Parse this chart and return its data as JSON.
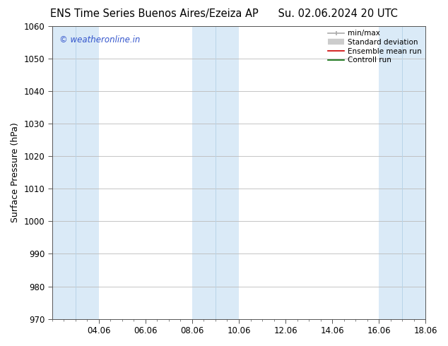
{
  "title_left": "ENS Time Series Buenos Aires/Ezeiza AP",
  "title_right": "Su. 02.06.2024 20 UTC",
  "ylabel": "Surface Pressure (hPa)",
  "ylim": [
    970,
    1060
  ],
  "yticks": [
    970,
    980,
    990,
    1000,
    1010,
    1020,
    1030,
    1040,
    1050,
    1060
  ],
  "xtick_labels": [
    "04.06",
    "06.06",
    "08.06",
    "10.06",
    "12.06",
    "14.06",
    "16.06",
    "18.06"
  ],
  "xtick_days": [
    4,
    6,
    8,
    10,
    12,
    14,
    16,
    18
  ],
  "xlim_days": [
    2,
    18
  ],
  "shaded_bands": [
    {
      "start": 2,
      "end": 4
    },
    {
      "start": 8,
      "end": 10
    },
    {
      "start": 16,
      "end": 18
    }
  ],
  "shaded_color": "#daeaf7",
  "shaded_edge_color": "#b8d4e8",
  "inner_lines_at": [
    3,
    9,
    17
  ],
  "watermark_text": "© weatheronline.in",
  "watermark_color": "#3355cc",
  "legend_items": [
    {
      "label": "min/max",
      "color": "#aaaaaa"
    },
    {
      "label": "Standard deviation",
      "color": "#cccccc"
    },
    {
      "label": "Ensemble mean run",
      "color": "#cc0000"
    },
    {
      "label": "Controll run",
      "color": "#006600"
    }
  ],
  "bg_color": "#ffffff",
  "grid_color": "#bbbbbb",
  "title_fontsize": 10.5,
  "axis_label_fontsize": 9,
  "tick_fontsize": 8.5,
  "watermark_fontsize": 8.5,
  "legend_fontsize": 7.5
}
